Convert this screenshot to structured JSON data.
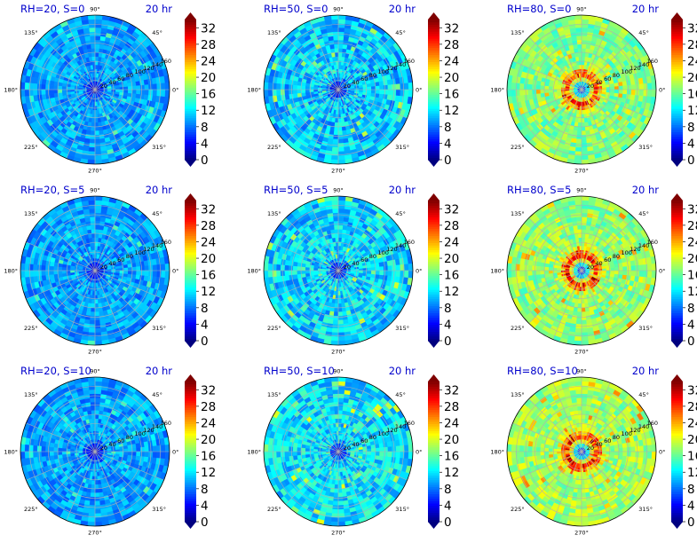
{
  "colormap": [
    "#00007f",
    "#0000ff",
    "#007fff",
    "#00ffff",
    "#7fff7f",
    "#ffff00",
    "#ff7f00",
    "#ff0000",
    "#7f0000"
  ],
  "chart_data": [
    {
      "type": "heatmap",
      "projection": "polar",
      "title": "RH=20, S=0",
      "time_label": "20 hr",
      "radial_ticks": [
        20,
        40,
        60,
        80,
        100,
        120,
        140,
        160
      ],
      "rmax": 160,
      "angle_ticks": [
        "0°",
        "45°",
        "90°",
        "135°",
        "180°",
        "225°",
        "270°",
        "315°"
      ],
      "colorbar": {
        "ticks": [
          0,
          4,
          8,
          12,
          16,
          20,
          24,
          28,
          32
        ],
        "range": [
          0,
          34
        ],
        "extend": "both"
      },
      "approx_mean": 9.5,
      "approx_center": 1.5,
      "variability": 2.5,
      "ring": 0
    },
    {
      "type": "heatmap",
      "projection": "polar",
      "title": "RH=50, S=0",
      "time_label": "20 hr",
      "radial_ticks": [
        20,
        40,
        60,
        80,
        100,
        120,
        140,
        160
      ],
      "rmax": 160,
      "angle_ticks": [
        "0°",
        "45°",
        "90°",
        "135°",
        "180°",
        "225°",
        "270°",
        "315°"
      ],
      "colorbar": {
        "ticks": [
          0,
          4,
          8,
          12,
          16,
          20,
          24,
          28,
          32
        ],
        "range": [
          0,
          34
        ],
        "extend": "both"
      },
      "approx_mean": 11,
      "approx_center": 1.5,
      "variability": 3.5,
      "ring": 0
    },
    {
      "type": "heatmap",
      "projection": "polar",
      "title": "RH=80, S=0",
      "time_label": "20 hr",
      "radial_ticks": [
        20,
        40,
        60,
        80,
        100,
        120,
        140,
        160
      ],
      "rmax": 160,
      "angle_ticks": [
        "0°",
        "45°",
        "90°",
        "135°",
        "180°",
        "225°",
        "270°",
        "315°"
      ],
      "colorbar": {
        "ticks": [
          0,
          4,
          8,
          12,
          16,
          20,
          24,
          28,
          32
        ],
        "range": [
          0,
          34
        ],
        "extend": "both"
      },
      "approx_mean": 17,
      "approx_center": 4,
      "variability": 3,
      "ring": 10
    },
    {
      "type": "heatmap",
      "projection": "polar",
      "title": "RH=20, S=5",
      "time_label": "20 hr",
      "radial_ticks": [
        20,
        40,
        60,
        80,
        100,
        120,
        140,
        160
      ],
      "rmax": 160,
      "angle_ticks": [
        "0°",
        "45°",
        "90°",
        "135°",
        "180°",
        "225°",
        "270°",
        "315°"
      ],
      "colorbar": {
        "ticks": [
          0,
          4,
          8,
          12,
          16,
          20,
          24,
          28,
          32
        ],
        "range": [
          0,
          34
        ],
        "extend": "both"
      },
      "approx_mean": 9.5,
      "approx_center": 1.5,
      "variability": 2.5,
      "ring": 0
    },
    {
      "type": "heatmap",
      "projection": "polar",
      "title": "RH=50, S=5",
      "time_label": "20 hr",
      "radial_ticks": [
        20,
        40,
        60,
        80,
        100,
        120,
        140,
        160
      ],
      "rmax": 160,
      "angle_ticks": [
        "0°",
        "45°",
        "90°",
        "135°",
        "180°",
        "225°",
        "270°",
        "315°"
      ],
      "colorbar": {
        "ticks": [
          0,
          4,
          8,
          12,
          16,
          20,
          24,
          28,
          32
        ],
        "range": [
          0,
          34
        ],
        "extend": "both"
      },
      "approx_mean": 11.5,
      "approx_center": 1.5,
      "variability": 3.5,
      "ring": 0
    },
    {
      "type": "heatmap",
      "projection": "polar",
      "title": "RH=80, S=5",
      "time_label": "20 hr",
      "radial_ticks": [
        20,
        40,
        60,
        80,
        100,
        120,
        140,
        160
      ],
      "rmax": 160,
      "angle_ticks": [
        "0°",
        "45°",
        "90°",
        "135°",
        "180°",
        "225°",
        "270°",
        "315°"
      ],
      "colorbar": {
        "ticks": [
          0,
          4,
          8,
          12,
          16,
          20,
          24,
          28,
          32
        ],
        "range": [
          0,
          34
        ],
        "extend": "both"
      },
      "approx_mean": 17.5,
      "approx_center": 4,
      "variability": 3,
      "ring": 11
    },
    {
      "type": "heatmap",
      "projection": "polar",
      "title": "RH=20, S=10",
      "time_label": "20 hr",
      "radial_ticks": [
        20,
        40,
        60,
        80,
        100,
        120,
        140,
        160
      ],
      "rmax": 160,
      "angle_ticks": [
        "0°",
        "45°",
        "90°",
        "135°",
        "180°",
        "225°",
        "270°",
        "315°"
      ],
      "colorbar": {
        "ticks": [
          0,
          4,
          8,
          12,
          16,
          20,
          24,
          28,
          32
        ],
        "range": [
          0,
          34
        ],
        "extend": "both"
      },
      "approx_mean": 9.5,
      "approx_center": 1.5,
      "variability": 2.5,
      "ring": 0
    },
    {
      "type": "heatmap",
      "projection": "polar",
      "title": "RH=50, S=10",
      "time_label": "20 hr",
      "radial_ticks": [
        20,
        40,
        60,
        80,
        100,
        120,
        140,
        160
      ],
      "rmax": 160,
      "angle_ticks": [
        "0°",
        "45°",
        "90°",
        "135°",
        "180°",
        "225°",
        "270°",
        "315°"
      ],
      "colorbar": {
        "ticks": [
          0,
          4,
          8,
          12,
          16,
          20,
          24,
          28,
          32
        ],
        "range": [
          0,
          34
        ],
        "extend": "both"
      },
      "approx_mean": 12,
      "approx_center": 2,
      "variability": 3.5,
      "ring": 0
    },
    {
      "type": "heatmap",
      "projection": "polar",
      "title": "RH=80, S=10",
      "time_label": "20 hr",
      "radial_ticks": [
        20,
        40,
        60,
        80,
        100,
        120,
        140,
        160
      ],
      "rmax": 160,
      "angle_ticks": [
        "0°",
        "45°",
        "90°",
        "135°",
        "180°",
        "225°",
        "270°",
        "315°"
      ],
      "colorbar": {
        "ticks": [
          0,
          4,
          8,
          12,
          16,
          20,
          24,
          28,
          32
        ],
        "range": [
          0,
          34
        ],
        "extend": "both"
      },
      "approx_mean": 18,
      "approx_center": 4,
      "variability": 3,
      "ring": 10
    }
  ]
}
